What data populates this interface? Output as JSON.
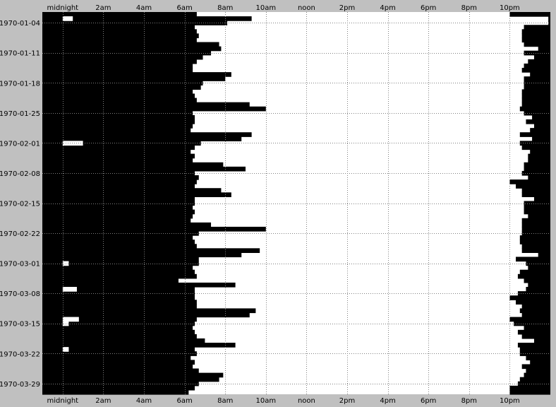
{
  "chart_data": {
    "type": "bar",
    "x_tick_labels": [
      "midnight",
      "2am",
      "4am",
      "6am",
      "8am",
      "10am",
      "noon",
      "2pm",
      "4pm",
      "6pm",
      "8pm",
      "10pm"
    ],
    "x_axis_unit": "hour of day",
    "x_ticks_hours": [
      0,
      2,
      4,
      6,
      8,
      10,
      12,
      14,
      16,
      18,
      20,
      22
    ],
    "xlim_hours": [
      -1,
      24
    ],
    "y_tick_labels": [
      "1970-01-04",
      "1970-01-11",
      "1970-01-18",
      "1970-01-25",
      "1970-02-01",
      "1970-02-08",
      "1970-02-15",
      "1970-02-22",
      "1970-03-01",
      "1970-03-08",
      "1970-03-15",
      "1970-03-22",
      "1970-03-29"
    ],
    "y_tick_day_index": [
      2,
      9,
      16,
      23,
      30,
      37,
      44,
      51,
      58,
      65,
      72,
      79,
      86
    ],
    "days": [
      "1970-01-02",
      "1970-01-03",
      "1970-01-04",
      "1970-01-05",
      "1970-01-06",
      "1970-01-07",
      "1970-01-08",
      "1970-01-09",
      "1970-01-10",
      "1970-01-11",
      "1970-01-12",
      "1970-01-13",
      "1970-01-14",
      "1970-01-15",
      "1970-01-16",
      "1970-01-17",
      "1970-01-18",
      "1970-01-19",
      "1970-01-20",
      "1970-01-21",
      "1970-01-22",
      "1970-01-23",
      "1970-01-24",
      "1970-01-25",
      "1970-01-26",
      "1970-01-27",
      "1970-01-28",
      "1970-01-29",
      "1970-01-30",
      "1970-01-31",
      "1970-02-01",
      "1970-02-02",
      "1970-02-03",
      "1970-02-04",
      "1970-02-05",
      "1970-02-06",
      "1970-02-07",
      "1970-02-08",
      "1970-02-09",
      "1970-02-10",
      "1970-02-11",
      "1970-02-12",
      "1970-02-13",
      "1970-02-14",
      "1970-02-15",
      "1970-02-16",
      "1970-02-17",
      "1970-02-18",
      "1970-02-19",
      "1970-02-20",
      "1970-02-21",
      "1970-02-22",
      "1970-02-23",
      "1970-02-24",
      "1970-02-25",
      "1970-02-26",
      "1970-02-27",
      "1970-02-28",
      "1970-03-01",
      "1970-03-02",
      "1970-03-03",
      "1970-03-04",
      "1970-03-05",
      "1970-03-06",
      "1970-03-07",
      "1970-03-08",
      "1970-03-09",
      "1970-03-10",
      "1970-03-11",
      "1970-03-12",
      "1970-03-13",
      "1970-03-14",
      "1970-03-15",
      "1970-03-16",
      "1970-03-17",
      "1970-03-18",
      "1970-03-19",
      "1970-03-20",
      "1970-03-21",
      "1970-03-22",
      "1970-03-23",
      "1970-03-24",
      "1970-03-25",
      "1970-03-26",
      "1970-03-27",
      "1970-03-28",
      "1970-03-29",
      "1970-03-30",
      "1970-03-31"
    ],
    "sleep_start_hours": [
      22.0,
      23.9,
      23.9,
      22.7,
      22.6,
      22.6,
      22.6,
      22.7,
      23.4,
      22.7,
      23.2,
      22.9,
      22.7,
      22.6,
      23.0,
      22.7,
      22.7,
      22.7,
      22.6,
      22.6,
      22.6,
      22.6,
      22.5,
      22.7,
      23.1,
      22.8,
      23.2,
      23.0,
      22.5,
      23.1,
      22.5,
      22.6,
      23.0,
      22.9,
      22.9,
      22.7,
      22.7,
      22.6,
      22.9,
      22.0,
      22.3,
      22.6,
      22.6,
      23.2,
      22.7,
      22.7,
      22.7,
      22.9,
      22.6,
      22.6,
      22.6,
      22.6,
      22.5,
      22.5,
      22.6,
      22.6,
      23.4,
      22.3,
      22.8,
      22.9,
      22.5,
      22.4,
      22.7,
      22.9,
      22.8,
      22.4,
      22.0,
      22.3,
      22.6,
      22.5,
      22.6,
      22.0,
      22.2,
      22.7,
      22.4,
      22.6,
      23.2,
      22.4,
      22.5,
      22.5,
      22.8,
      23.0,
      22.6,
      22.8,
      22.7,
      22.5,
      22.4,
      22.0,
      22.0
    ],
    "wake_hours": [
      6.6,
      9.3,
      8.1,
      6.5,
      6.6,
      6.7,
      6.6,
      7.7,
      7.8,
      7.3,
      6.9,
      6.6,
      6.4,
      6.4,
      8.3,
      8.0,
      6.9,
      6.8,
      6.4,
      6.5,
      6.6,
      9.2,
      10.0,
      6.4,
      6.5,
      6.5,
      6.4,
      6.3,
      9.3,
      8.8,
      6.8,
      6.5,
      6.3,
      6.5,
      6.4,
      7.9,
      9.0,
      6.5,
      6.7,
      6.6,
      6.5,
      7.8,
      8.3,
      6.5,
      6.5,
      6.4,
      6.5,
      6.4,
      6.3,
      7.3,
      10.0,
      6.7,
      6.4,
      6.5,
      6.6,
      9.7,
      8.8,
      6.7,
      6.7,
      6.4,
      6.5,
      6.6,
      5.7,
      8.5,
      6.5,
      6.5,
      6.5,
      6.6,
      6.6,
      9.5,
      9.2,
      6.6,
      6.5,
      6.4,
      6.5,
      6.6,
      7.0,
      8.5,
      6.5,
      6.6,
      6.3,
      6.5,
      6.4,
      6.7,
      7.9,
      7.7,
      6.7,
      6.5,
      6.2
    ],
    "night_awake_intervals": [
      {
        "day": "1970-01-03",
        "start_hour": 0.0,
        "end_hour": 0.5
      },
      {
        "day": "1970-02-01",
        "start_hour": 0.0,
        "end_hour": 1.0
      },
      {
        "day": "1970-03-01",
        "start_hour": 0.0,
        "end_hour": 0.3
      },
      {
        "day": "1970-03-07",
        "start_hour": 0.0,
        "end_hour": 0.7
      },
      {
        "day": "1970-03-14",
        "start_hour": 0.0,
        "end_hour": 0.8
      },
      {
        "day": "1970-03-15",
        "start_hour": 0.0,
        "end_hour": 0.3
      },
      {
        "day": "1970-03-21",
        "start_hour": 0.0,
        "end_hour": 0.3
      }
    ],
    "grid": true,
    "colors": {
      "asleep": "#000000",
      "awake": "#ffffff",
      "background": "#c0c0c0",
      "grid": "#808080"
    }
  }
}
